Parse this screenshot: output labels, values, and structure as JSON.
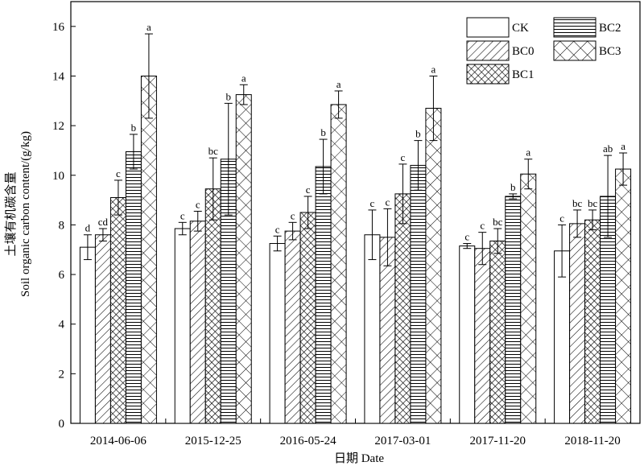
{
  "chart_data": {
    "type": "bar",
    "xlabel": "日期 Date",
    "ylabel_cn": "土壤有机碳含量",
    "ylabel_en": "Soil organic carbon content/(g/kg)",
    "ylim": [
      0,
      17
    ],
    "yticks": [
      0,
      2,
      4,
      6,
      8,
      10,
      12,
      14,
      16
    ],
    "grid": false,
    "legend_position": "top-right",
    "categories": [
      "2014-06-06",
      "2015-12-25",
      "2016-05-24",
      "2017-03-01",
      "2017-11-20",
      "2018-11-20"
    ],
    "series": [
      {
        "name": "CK",
        "pattern": "blank",
        "values": [
          7.1,
          7.85,
          7.25,
          7.6,
          7.15,
          6.95
        ],
        "errors": [
          0.5,
          0.25,
          0.3,
          1.0,
          0.1,
          1.05
        ],
        "letters": [
          "d",
          "c",
          "c",
          "c",
          "c",
          "c"
        ]
      },
      {
        "name": "BC0",
        "pattern": "diagonal",
        "values": [
          7.6,
          8.15,
          7.75,
          7.5,
          7.05,
          8.05
        ],
        "errors": [
          0.25,
          0.4,
          0.35,
          1.15,
          0.65,
          0.55
        ],
        "letters": [
          "cd",
          "c",
          "c",
          "c",
          "c",
          "bc"
        ]
      },
      {
        "name": "BC1",
        "pattern": "crosshatch",
        "values": [
          9.1,
          9.45,
          8.5,
          9.25,
          7.35,
          8.2
        ],
        "errors": [
          0.7,
          1.25,
          0.65,
          1.2,
          0.5,
          0.4
        ],
        "letters": [
          "c",
          "bc",
          "c",
          "c",
          "bc",
          "bc"
        ]
      },
      {
        "name": "BC2",
        "pattern": "horizontal",
        "values": [
          10.95,
          10.65,
          10.35,
          10.4,
          9.15,
          9.15
        ],
        "errors": [
          0.7,
          2.25,
          1.1,
          1.0,
          0.1,
          1.65
        ],
        "letters": [
          "b",
          "b",
          "b",
          "b",
          "b",
          "ab"
        ]
      },
      {
        "name": "BC3",
        "pattern": "x-hatch",
        "values": [
          14.0,
          13.25,
          12.85,
          12.7,
          10.05,
          10.25
        ],
        "errors": [
          1.7,
          0.4,
          0.55,
          1.3,
          0.6,
          0.65
        ],
        "letters": [
          "a",
          "a",
          "a",
          "a",
          "a",
          "a"
        ]
      }
    ]
  }
}
